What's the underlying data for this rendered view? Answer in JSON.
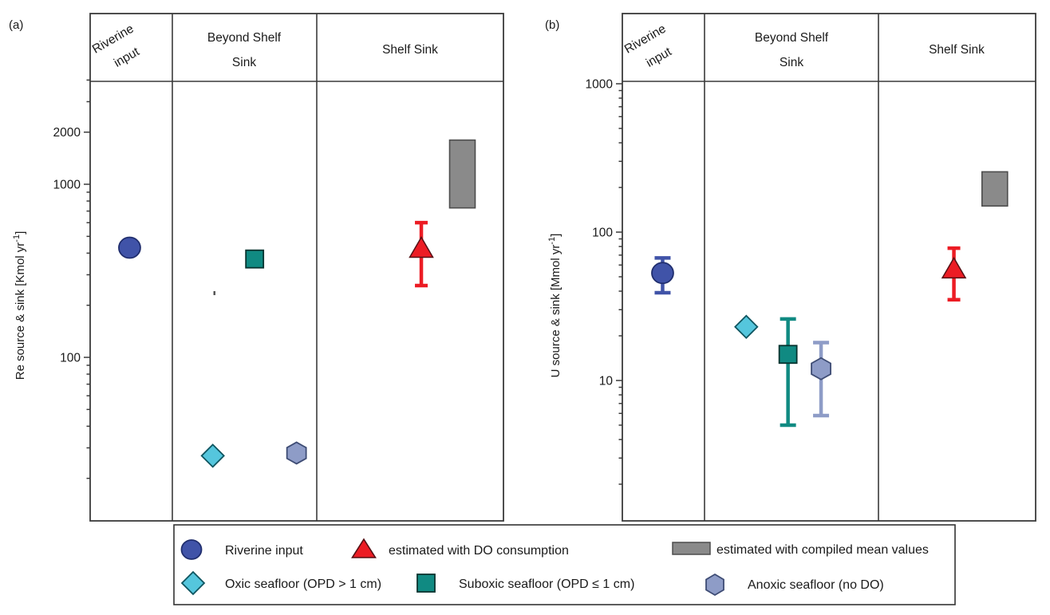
{
  "figure": {
    "panels": [
      {
        "letter": "(a)",
        "ylabel_parts": [
          "Re source & sink [Kmol yr",
          "-1",
          "]"
        ],
        "header": {
          "col1_lines": [
            "Riverine",
            "input"
          ],
          "col2_lines": [
            "Beyond Shelf",
            "Sink"
          ],
          "col3_lines": [
            "Shelf Sink"
          ]
        }
      },
      {
        "letter": "(b)",
        "ylabel_parts": [
          "U source & sink [Mmol yr",
          "-1",
          "]"
        ],
        "header": {
          "col1_lines": [
            "Riverine",
            "input"
          ],
          "col2_lines": [
            "Beyond Shelf",
            "Sink"
          ],
          "col3_lines": [
            "Shelf Sink"
          ]
        }
      }
    ]
  },
  "legend": {
    "items": [
      {
        "label": "Riverine input",
        "marker": "circle",
        "color": "#4053A8",
        "edge": "#202E6E",
        "text_color": "#1a1a1a"
      },
      {
        "label": "estimated with DO consumption",
        "marker": "triangle",
        "color": "#EC1C24",
        "edge": "#551015",
        "text_color": "#D91F3D"
      },
      {
        "label": "estimated with compiled mean values",
        "marker": "box",
        "color": "#8A8A8A",
        "edge": "#4D4D4D",
        "text_color": "#7F7F7F"
      },
      {
        "label": "Oxic seafloor (OPD > 1 cm)",
        "marker": "diamond",
        "color": "#55C6DD",
        "edge": "#0F5560",
        "text_color": "#1a1a1a"
      },
      {
        "label": "Suboxic seafloor (OPD ≤ 1 cm)",
        "marker": "square",
        "color": "#108A82",
        "edge": "#06332F",
        "text_color": "#1a1a1a"
      },
      {
        "label": "Anoxic seafloor (no DO)",
        "marker": "hexagon",
        "color": "#8E9CC7",
        "edge": "#3E4C74",
        "text_color": "#1a1a1a"
      }
    ]
  },
  "chart_data": [
    {
      "panel": "(a)",
      "type": "scatter",
      "yscale": "log",
      "ylabel": "Re source & sink [Kmol yr⁻¹]",
      "unit": "Kmol yr-1",
      "ylim": [
        11,
        4000
      ],
      "ytick_labels": [
        "2000",
        "1000",
        "100"
      ],
      "grid": false,
      "categories": [
        "Riverine input",
        "Beyond Shelf Sink",
        "Shelf Sink"
      ],
      "points": [
        {
          "series": "Riverine input",
          "category": "Riverine input",
          "marker": "circle",
          "color": "#4053A8",
          "edge": "#202E6E",
          "value": 430,
          "col": 0,
          "x_frac": 0.48
        },
        {
          "series": "Oxic seafloor (OPD > 1 cm)",
          "category": "Beyond Shelf Sink",
          "marker": "diamond",
          "color": "#55C6DD",
          "edge": "#0F5560",
          "value": 27,
          "col": 1,
          "x_frac": 0.28
        },
        {
          "series": "Suboxic seafloor (OPD ≤ 1 cm)",
          "category": "Beyond Shelf Sink",
          "marker": "square",
          "color": "#108A82",
          "edge": "#06332F",
          "value": 370,
          "col": 1,
          "x_frac": 0.57
        },
        {
          "series": "Anoxic seafloor (no DO)",
          "category": "Beyond Shelf Sink",
          "marker": "hexagon",
          "color": "#8E9CC7",
          "edge": "#3E4C74",
          "value": 28,
          "col": 1,
          "x_frac": 0.86
        },
        {
          "series": "estimated with DO consumption",
          "category": "Shelf Sink",
          "marker": "triangle",
          "color": "#EC1C24",
          "edge": "#551015",
          "value": 430,
          "error_range": [
            260,
            600
          ],
          "col": 2,
          "x_frac": 0.56
        },
        {
          "series": "estimated with compiled mean values",
          "category": "Shelf Sink",
          "marker": "box",
          "color": "#8A8A8A",
          "edge": "#4D4D4D",
          "value_range": [
            730,
            1800
          ],
          "col": 2,
          "x_frac": 0.78
        }
      ],
      "stray_mark": {
        "note": "small unlabeled dash in Beyond Shelf Sink column",
        "approx_value": 235,
        "col": 1,
        "x_frac": 0.29
      }
    },
    {
      "panel": "(b)",
      "type": "scatter",
      "yscale": "log",
      "ylabel": "U source & sink [Mmol yr⁻¹]",
      "unit": "Mmol yr-1",
      "ylim": [
        1.2,
        1050
      ],
      "ytick_labels": [
        "1000",
        "100",
        "10"
      ],
      "grid": false,
      "categories": [
        "Riverine input",
        "Beyond Shelf Sink",
        "Shelf Sink"
      ],
      "points": [
        {
          "series": "Riverine input",
          "category": "Riverine input",
          "marker": "circle",
          "color": "#4053A8",
          "edge": "#202E6E",
          "value": 53,
          "error_range": [
            39,
            67
          ],
          "col": 0,
          "x_frac": 0.49
        },
        {
          "series": "Oxic seafloor (OPD > 1 cm)",
          "category": "Beyond Shelf Sink",
          "marker": "diamond",
          "color": "#55C6DD",
          "edge": "#0F5560",
          "value": 23,
          "col": 1,
          "x_frac": 0.24
        },
        {
          "series": "Suboxic seafloor (OPD ≤ 1 cm)",
          "category": "Beyond Shelf Sink",
          "marker": "square",
          "color": "#108A82",
          "edge": "#06332F",
          "value": 15,
          "error_range": [
            5,
            26
          ],
          "col": 1,
          "x_frac": 0.48
        },
        {
          "series": "Anoxic seafloor (no DO)",
          "category": "Beyond Shelf Sink",
          "marker": "hexagon",
          "color": "#8E9CC7",
          "edge": "#3E4C74",
          "value": 12,
          "error_range": [
            5.8,
            18
          ],
          "col": 1,
          "x_frac": 0.67
        },
        {
          "series": "estimated with DO consumption",
          "category": "Shelf Sink",
          "marker": "triangle",
          "color": "#EC1C24",
          "edge": "#551015",
          "value": 57,
          "error_range": [
            35,
            78
          ],
          "col": 2,
          "x_frac": 0.48
        },
        {
          "series": "estimated with compiled mean values",
          "category": "Shelf Sink",
          "marker": "box",
          "color": "#8A8A8A",
          "edge": "#4D4D4D",
          "value_range": [
            150,
            255
          ],
          "col": 2,
          "x_frac": 0.74
        }
      ]
    }
  ]
}
